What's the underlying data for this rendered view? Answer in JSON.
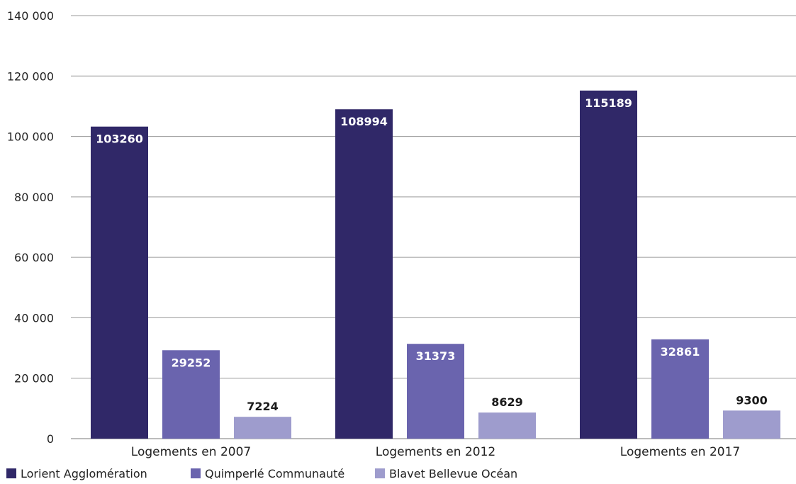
{
  "chart_data": {
    "type": "bar",
    "title": "",
    "xlabel": "",
    "ylabel": "",
    "categories": [
      "Logements en 2007",
      "Logements en 2012",
      "Logements en 2017"
    ],
    "series": [
      {
        "name": "Lorient Agglomération",
        "color": "#302868",
        "values": [
          103260,
          108994,
          115189
        ],
        "label_inside": true
      },
      {
        "name": "Quimperlé Communauté",
        "color": "#6a64ae",
        "values": [
          29252,
          31373,
          32861
        ],
        "label_inside": true
      },
      {
        "name": "Blavet Bellevue Océan",
        "color": "#9e9ccd",
        "values": [
          7224,
          8629,
          9300
        ],
        "label_inside": false
      }
    ],
    "ylim": [
      0,
      140000
    ],
    "yticks": [
      0,
      20000,
      40000,
      60000,
      80000,
      100000,
      120000,
      140000
    ],
    "ytick_labels": [
      "0",
      "20 000",
      "40 000",
      "60 000",
      "80 000",
      "100 000",
      "120 000",
      "140 000"
    ],
    "grid": true,
    "legend": "bottom-left"
  }
}
